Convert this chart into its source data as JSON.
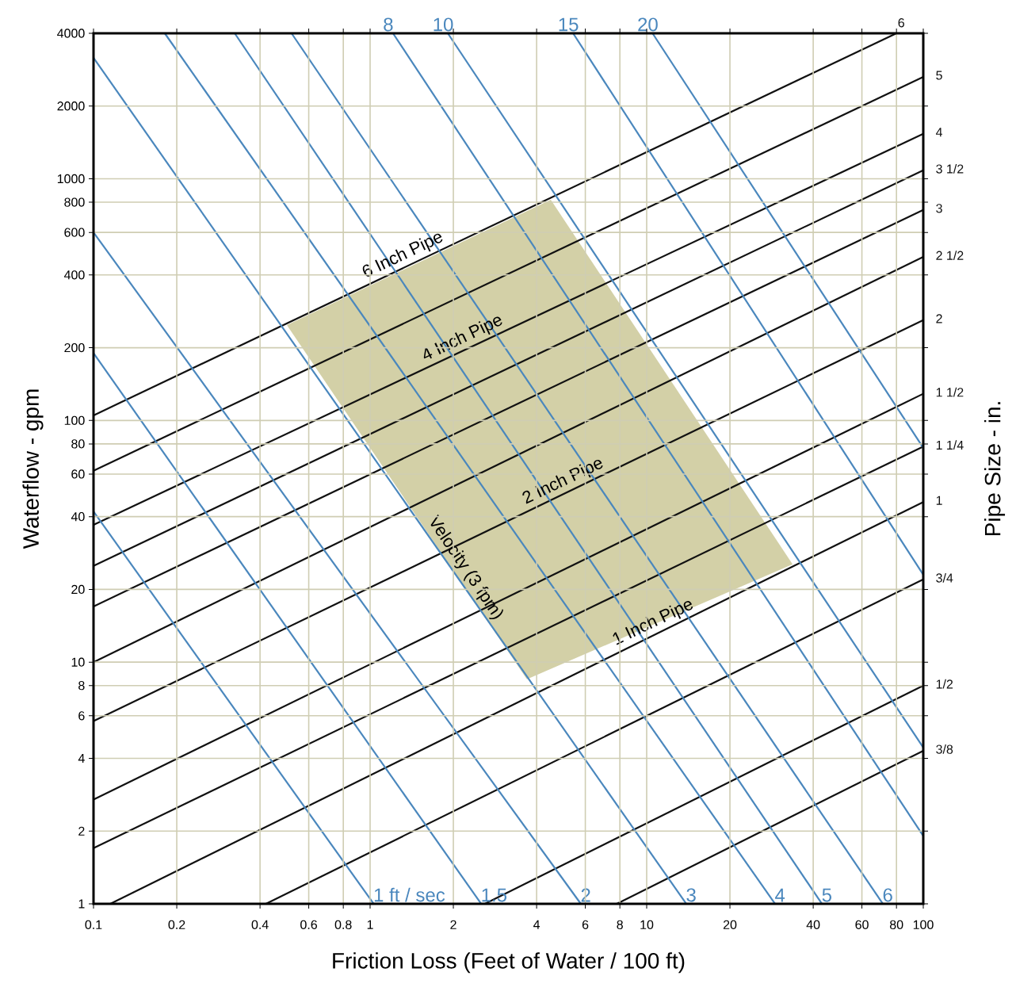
{
  "chart_data": {
    "type": "line",
    "log": "xy",
    "grid": true,
    "marker": "none",
    "line_style": "solid",
    "xlabel": "Friction Loss (Feet of Water / 100 ft)",
    "ylabel": "Waterflow - gpm",
    "y2label": "Pipe Size - in.",
    "xlim": [
      0.1,
      100
    ],
    "ylim": [
      1,
      4000
    ],
    "xticks": [
      0.1,
      0.2,
      0.4,
      0.6,
      0.8,
      1,
      2,
      4,
      6,
      8,
      10,
      20,
      40,
      60,
      80,
      100
    ],
    "yticks": [
      1,
      2,
      4,
      6,
      8,
      10,
      20,
      40,
      60,
      80,
      100,
      200,
      400,
      600,
      800,
      1000,
      2000,
      4000
    ],
    "series": [
      {
        "type": "area",
        "color": "#d3d0a7",
        "x": [
          0.5,
          4.5,
          33.7,
          3.69
        ],
        "values": [
          248,
          819,
          25.4,
          8.5
        ]
      },
      {
        "name": "6",
        "color": "#111111",
        "x": [
          0.1,
          80
        ],
        "values": [
          105,
          4000
        ]
      },
      {
        "name": "5",
        "color": "#111111",
        "x": [
          0.1,
          100
        ],
        "values": [
          62,
          2640
        ]
      },
      {
        "name": "4",
        "color": "#111111",
        "x": [
          0.1,
          100
        ],
        "values": [
          37,
          1535
        ]
      },
      {
        "name": "3 1/2",
        "color": "#111111",
        "x": [
          0.1,
          100
        ],
        "values": [
          25,
          1084
        ]
      },
      {
        "name": "3",
        "color": "#111111",
        "x": [
          0.1,
          100
        ],
        "values": [
          17,
          743
        ]
      },
      {
        "name": "2 1/2",
        "color": "#111111",
        "x": [
          0.1,
          100
        ],
        "values": [
          10,
          475
        ]
      },
      {
        "name": "2",
        "color": "#111111",
        "x": [
          0.1,
          100
        ],
        "values": [
          5.7,
          260
        ]
      },
      {
        "name": "1 1/2",
        "color": "#111111",
        "x": [
          0.1,
          100
        ],
        "values": [
          2.7,
          129
        ]
      },
      {
        "name": "1 1/4",
        "color": "#111111",
        "x": [
          0.1,
          100
        ],
        "values": [
          1.7,
          78
        ]
      },
      {
        "name": "1",
        "color": "#111111",
        "x": [
          0.115,
          100
        ],
        "values": [
          1,
          46
        ]
      },
      {
        "name": "3/4",
        "color": "#111111",
        "x": [
          0.42,
          100
        ],
        "values": [
          1,
          22
        ]
      },
      {
        "name": "1/2",
        "color": "#111111",
        "x": [
          2.6,
          100
        ],
        "values": [
          1,
          8
        ]
      },
      {
        "name": "3/8",
        "color": "#111111",
        "x": [
          7.8,
          100
        ],
        "values": [
          1,
          4.3
        ]
      },
      {
        "name": "1 ft / sec",
        "color": "#4a87bd",
        "x": [
          0.1,
          1.03
        ],
        "values": [
          42,
          1
        ]
      },
      {
        "name": "1.5",
        "color": "#4a87bd",
        "x": [
          0.1,
          2.52
        ],
        "values": [
          190,
          1
        ]
      },
      {
        "name": "2",
        "color": "#4a87bd",
        "x": [
          0.1,
          5.78
        ],
        "values": [
          600,
          1
        ]
      },
      {
        "name": "3",
        "color": "#4a87bd",
        "x": [
          0.1,
          13.9
        ],
        "values": [
          3170,
          1
        ]
      },
      {
        "name": "4",
        "color": "#4a87bd",
        "x": [
          0.181,
          29.1
        ],
        "values": [
          4000,
          1
        ]
      },
      {
        "name": "5",
        "color": "#4a87bd",
        "x": [
          0.324,
          43
        ],
        "values": [
          4000,
          1
        ]
      },
      {
        "name": "6",
        "color": "#4a87bd",
        "x": [
          0.52,
          71.4
        ],
        "values": [
          4000,
          1
        ]
      },
      {
        "name": "8",
        "color": "#4a87bd",
        "x": [
          1.21,
          100
        ],
        "values": [
          4000,
          1.91
        ]
      },
      {
        "name": "10",
        "color": "#4a87bd",
        "x": [
          1.91,
          100
        ],
        "values": [
          4000,
          4.43
        ]
      },
      {
        "name": "15",
        "color": "#4a87bd",
        "x": [
          5.42,
          100
        ],
        "values": [
          4000,
          23
        ]
      },
      {
        "name": "20",
        "color": "#4a87bd",
        "x": [
          10.5,
          100
        ],
        "values": [
          4000,
          77
        ]
      }
    ],
    "annotations": [
      {
        "text": "6 Inch Pipe",
        "x": 1.37,
        "y": 437
      },
      {
        "text": "4 Inch Pipe",
        "x": 2.25,
        "y": 198
      },
      {
        "text": "2 Inch Pipe",
        "x": 5.2,
        "y": 50.7
      },
      {
        "text": "1 Inch Pipe",
        "x": 11,
        "y": 13.2
      },
      {
        "text": "Velocity (3 fpm)",
        "x": 2.04,
        "y": 23
      }
    ]
  }
}
